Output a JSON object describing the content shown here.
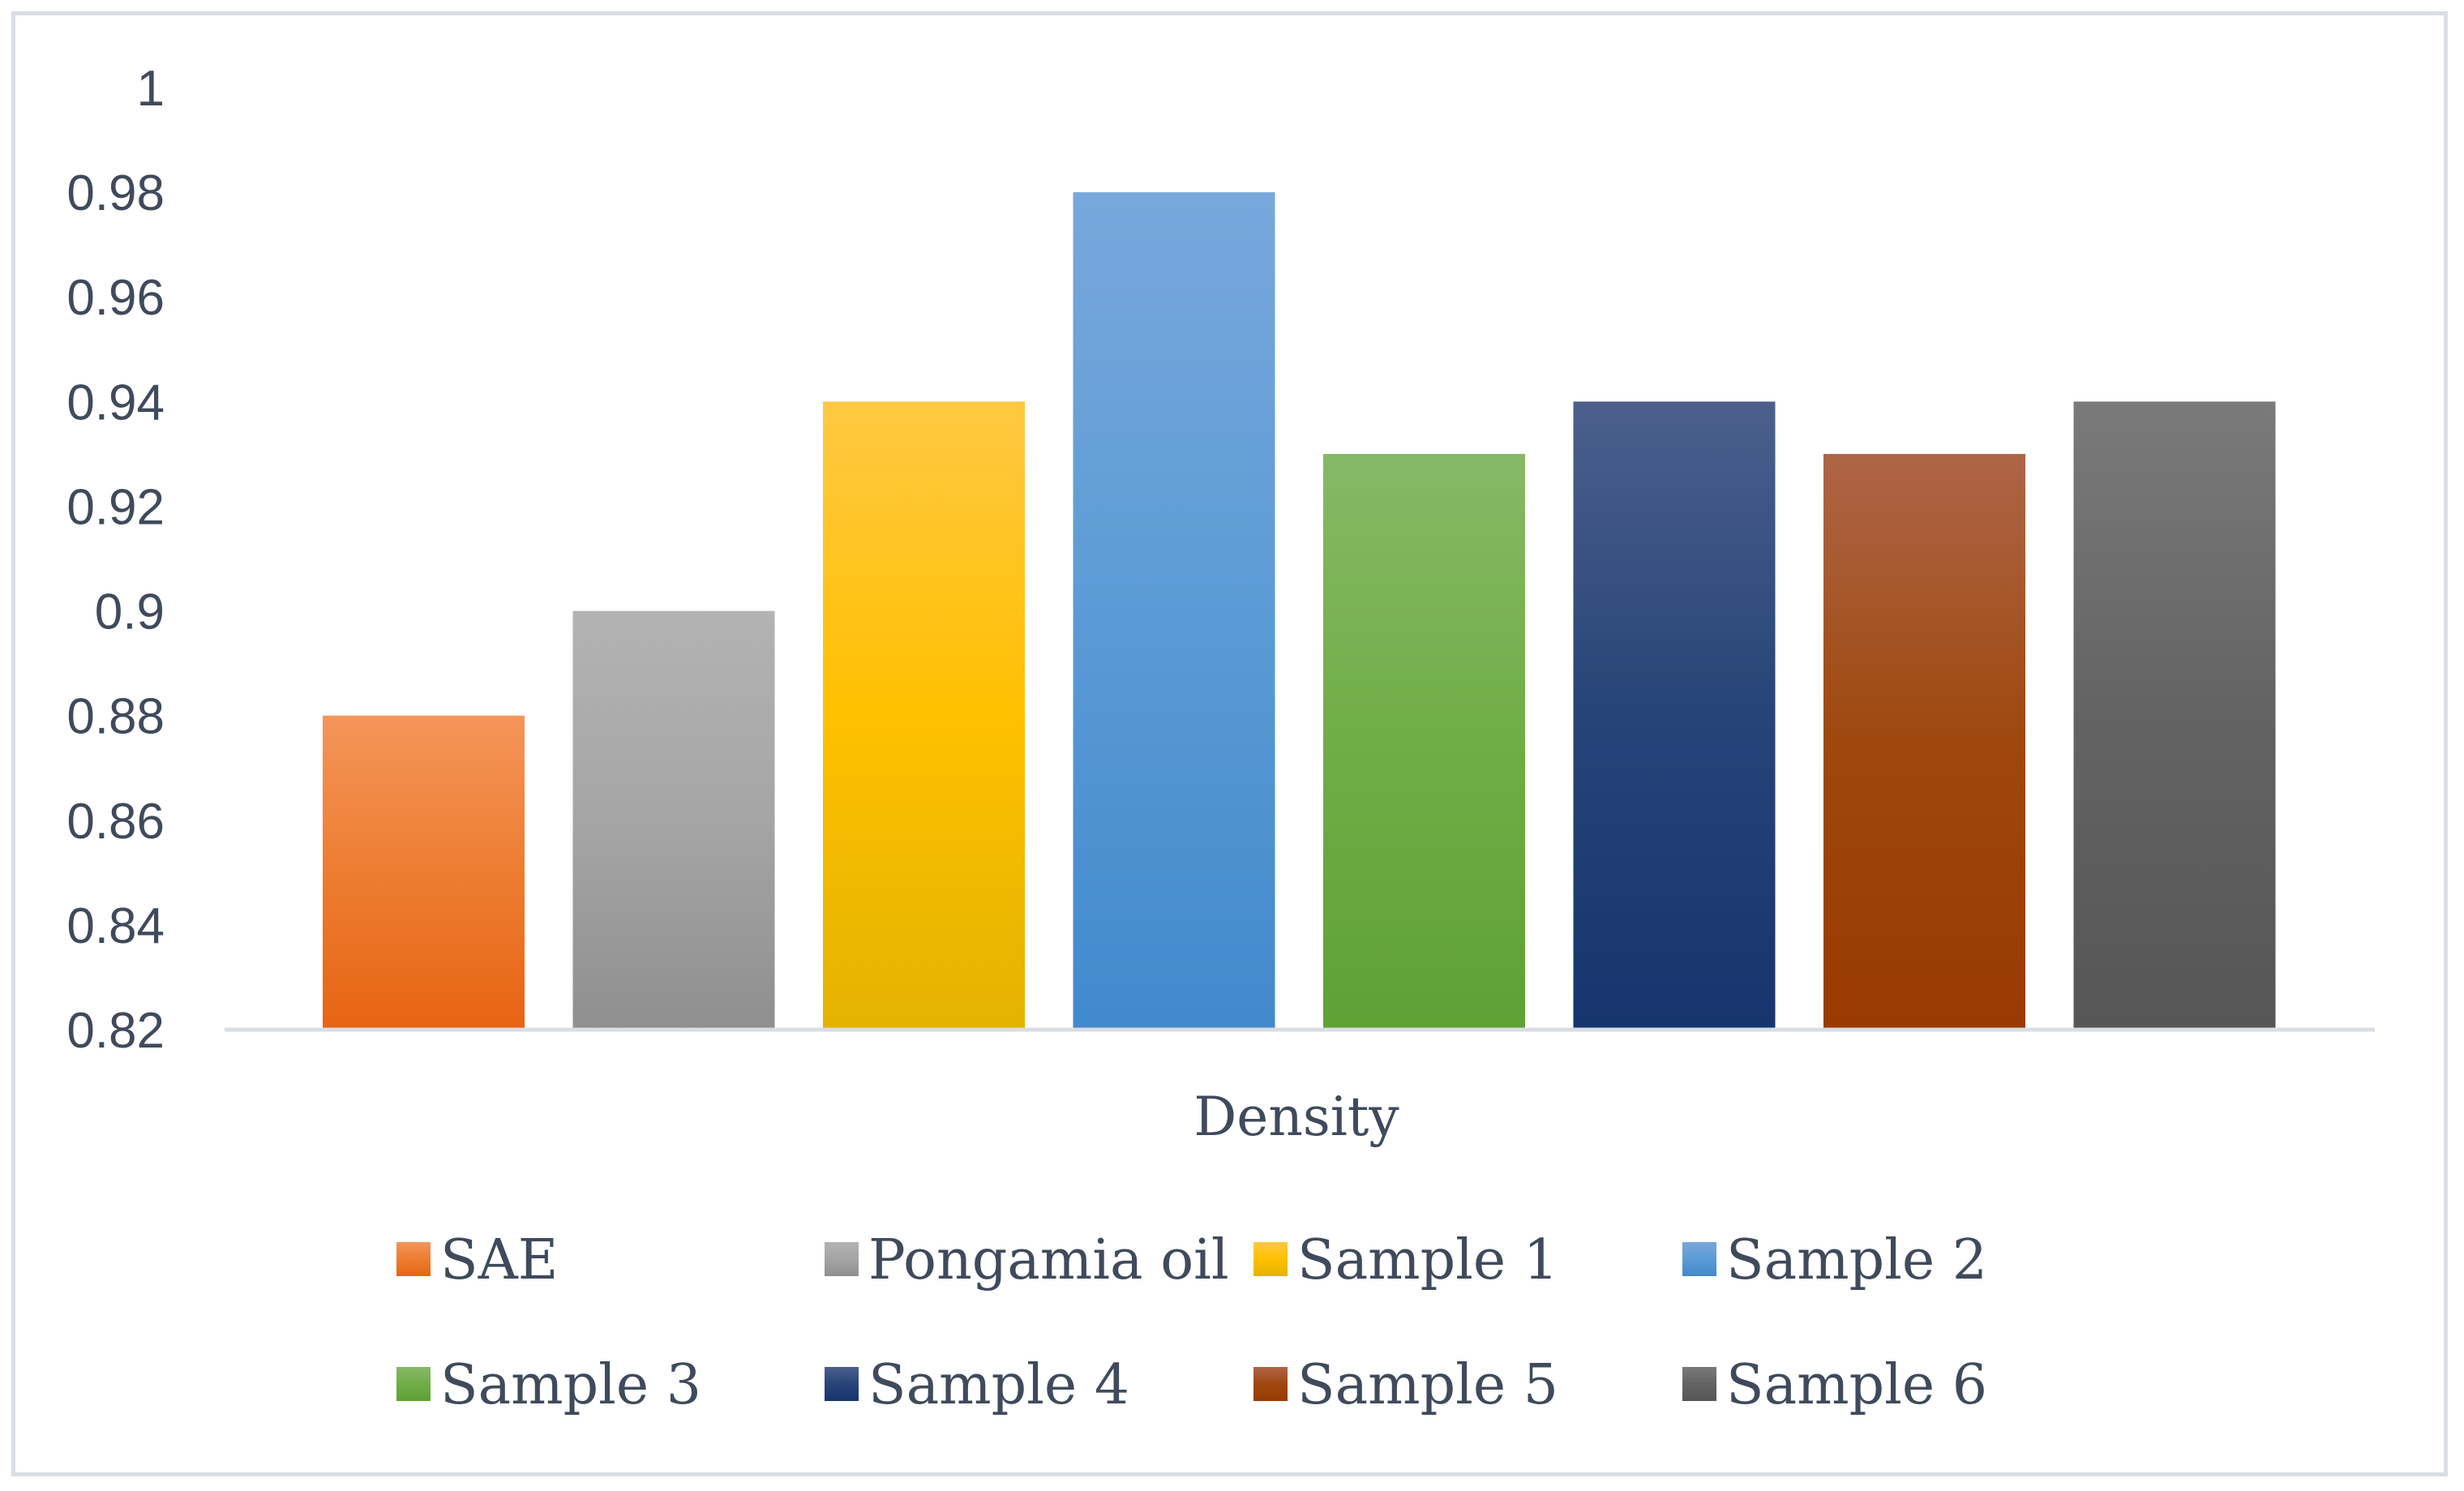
{
  "chart_data": {
    "type": "bar",
    "title": "",
    "xlabel": "Density",
    "ylabel": "",
    "categories": [
      "Density"
    ],
    "ylim": [
      0.82,
      1.0
    ],
    "yticks": [
      0.82,
      0.84,
      0.86,
      0.88,
      0.9,
      0.92,
      0.94,
      0.96,
      0.98,
      1
    ],
    "ytick_labels": [
      "0.82",
      "0.84",
      "0.86",
      "0.88",
      "0.9",
      "0.92",
      "0.94",
      "0.96",
      "0.98",
      "1"
    ],
    "grid": false,
    "legend_position": "bottom",
    "series": [
      {
        "name": "SAE",
        "values": [
          0.88
        ],
        "color": "#ed7d31",
        "color_light": "#f4955a",
        "color_dark": "#e76413"
      },
      {
        "name": "Pongamia oil",
        "values": [
          0.9
        ],
        "color": "#a5a5a5",
        "color_light": "#b3b3b3",
        "color_dark": "#8f8f8f"
      },
      {
        "name": "Sample 1",
        "values": [
          0.94
        ],
        "color": "#ffc000",
        "color_light": "#ffc842",
        "color_dark": "#e3b300"
      },
      {
        "name": "Sample 2",
        "values": [
          0.98
        ],
        "color": "#5b9bd5",
        "color_light": "#78a8dc",
        "color_dark": "#4289cc"
      },
      {
        "name": "Sample 3",
        "values": [
          0.93
        ],
        "color": "#70ad47",
        "color_light": "#86b966",
        "color_dark": "#5fa134"
      },
      {
        "name": "Sample 4",
        "values": [
          0.94
        ],
        "color": "#264478",
        "color_light": "#4c5f8c",
        "color_dark": "#16356e"
      },
      {
        "name": "Sample 5",
        "values": [
          0.93
        ],
        "color": "#9e480e",
        "color_light": "#ae6547",
        "color_dark": "#993a02"
      },
      {
        "name": "Sample 6",
        "values": [
          0.94
        ],
        "color": "#636363",
        "color_light": "#7a7a7a",
        "color_dark": "#565656"
      }
    ]
  }
}
